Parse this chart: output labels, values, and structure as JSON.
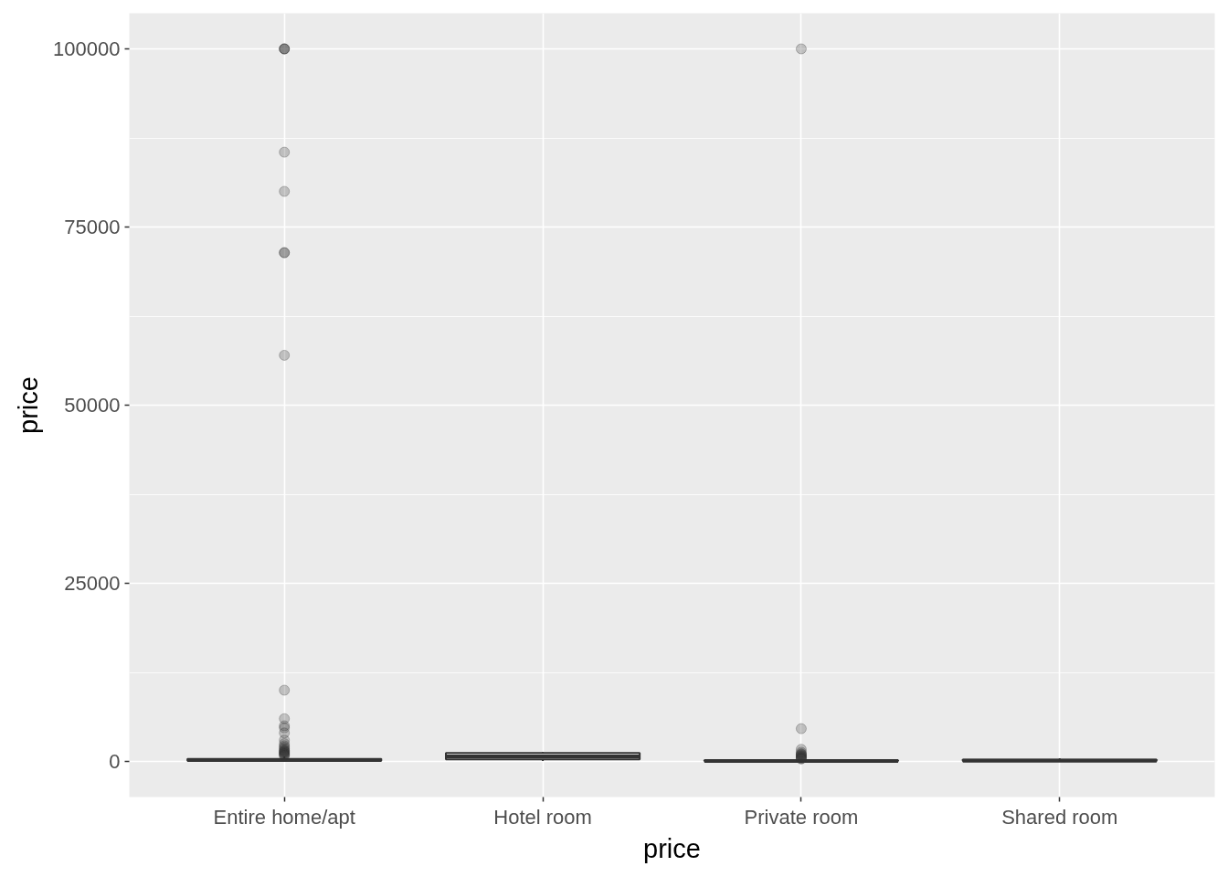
{
  "chart_data": {
    "type": "box",
    "xlabel": "price",
    "ylabel": "price",
    "categories": [
      "Entire home/apt",
      "Hotel room",
      "Private room",
      "Shared room"
    ],
    "series": [
      {
        "color": "#333333",
        "boxes": [
          {
            "q1": 100,
            "median": 180,
            "q3": 350,
            "high": 700,
            "outliers": [
              100000,
              100000,
              100000,
              85500,
              80000,
              71400,
              71400,
              57000,
              10000,
              6000,
              5000,
              4700,
              4000,
              3000,
              2500,
              2200,
              2000,
              1800,
              1600,
              1500,
              1400,
              1300,
              1200,
              1100,
              1000,
              900,
              800
            ]
          },
          {
            "low": 50,
            "q1": 300,
            "median": 700,
            "q3": 1200,
            "high": 1300
          },
          {
            "q1": 50,
            "median": 80,
            "q3": 150,
            "high": 300,
            "outliers": [
              100000,
              4600,
              1700,
              1300,
              1100,
              1000,
              900,
              800,
              700,
              600,
              500,
              400,
              350
            ]
          },
          {
            "q1": 50,
            "median": 100,
            "q3": 250,
            "high": 450
          }
        ]
      }
    ],
    "ylim": [
      -5000,
      105000
    ],
    "yticks": [
      0,
      25000,
      50000,
      75000,
      100000
    ],
    "grid": true,
    "marker": "circle"
  }
}
